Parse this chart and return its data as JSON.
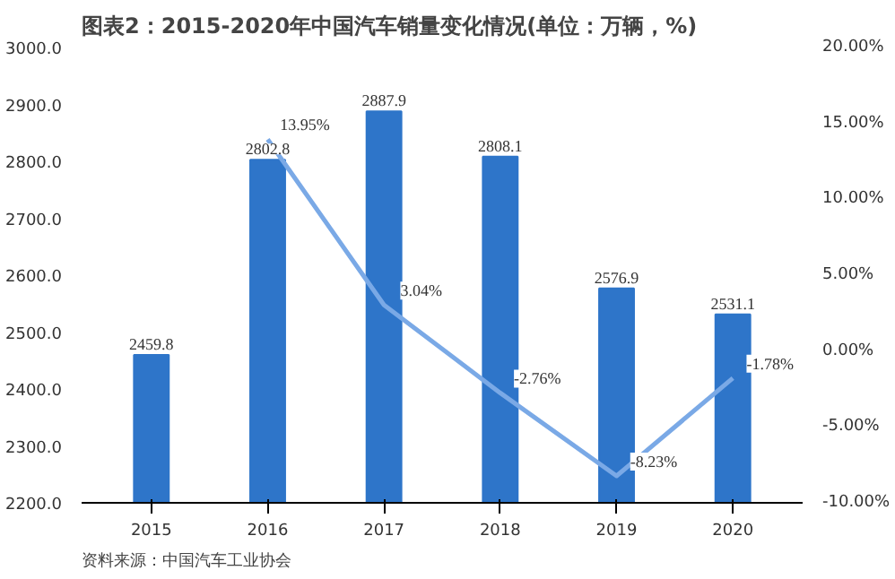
{
  "chart_data": {
    "type": "bar",
    "title": "图表2：2015-2020年中国汽车销量变化情况(单位：万辆，%)",
    "categories": [
      "2015",
      "2016",
      "2017",
      "2018",
      "2019",
      "2020"
    ],
    "series": [
      {
        "color": "#2e75c9",
        "values": [
          2459.8,
          2802.8,
          2887.9,
          2808.1,
          2576.9,
          2531.1
        ],
        "value_labels": [
          "2459.8",
          "2802.8",
          "2887.9",
          "2808.1",
          "2576.9",
          "2531.1"
        ]
      },
      {
        "type": "line",
        "axis": "y2",
        "color": "#7aa9e6",
        "values": [
          null,
          13.95,
          3.04,
          -2.76,
          -8.23,
          -1.78
        ],
        "value_labels": [
          null,
          "13.95%",
          "3.04%",
          "-2.76%",
          "-8.23%",
          "-1.78%"
        ]
      }
    ],
    "ylim": [
      2200,
      3000
    ],
    "yticks": [
      {
        "value": 2200,
        "label": "2200.0"
      },
      {
        "value": 2300,
        "label": "2300.0"
      },
      {
        "value": 2400,
        "label": "2400.0"
      },
      {
        "value": 2500,
        "label": "2500.0"
      },
      {
        "value": 2600,
        "label": "2600.0"
      },
      {
        "value": 2700,
        "label": "2700.0"
      },
      {
        "value": 2800,
        "label": "2800.0"
      },
      {
        "value": 2900,
        "label": "2900.0"
      },
      {
        "value": 3000,
        "label": "3000.0"
      }
    ],
    "y2lim": [
      -10,
      20
    ],
    "y2ticks": [
      {
        "value": -10,
        "label": "-10.00%"
      },
      {
        "value": -5,
        "label": "-5.00%"
      },
      {
        "value": 0,
        "label": "0.00%"
      },
      {
        "value": 5,
        "label": "5.00%"
      },
      {
        "value": 10,
        "label": "10.00%"
      },
      {
        "value": 15,
        "label": "15.00%"
      },
      {
        "value": 20,
        "label": "20.00%"
      }
    ],
    "annotations": [
      "资料来源：中国汽车工业协会"
    ]
  }
}
